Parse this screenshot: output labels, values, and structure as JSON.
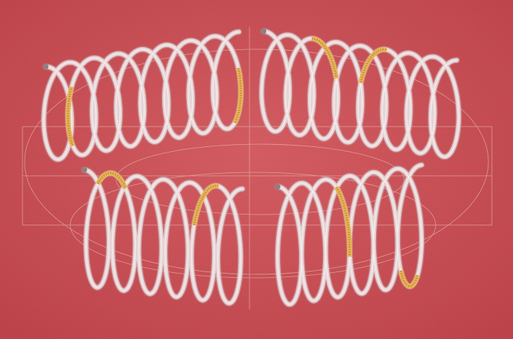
{
  "artwork": {
    "subject": "spiral-cigarettes-on-red-paper",
    "colors": {
      "background": "#c94a4f",
      "background_dark": "#b8383f",
      "guide_lines": "#e7b7b5",
      "coil": "#ebe3e4",
      "coil_shadow": "#c7a0a5",
      "filter": "#e6b657",
      "filter_speckle": "#c9893a",
      "ash": "#8c7f80"
    }
  }
}
